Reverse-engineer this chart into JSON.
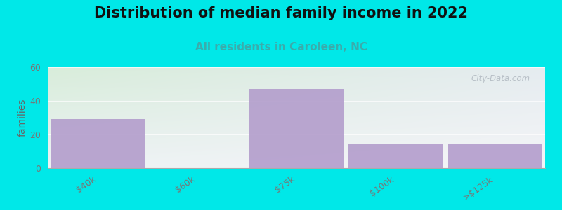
{
  "title": "Distribution of median family income in 2022",
  "subtitle": "All residents in Caroleen, NC",
  "categories": [
    "$40k",
    "$60k",
    "$75k",
    "$100k",
    ">$125k"
  ],
  "values": [
    29,
    0,
    47,
    14,
    14
  ],
  "bar_color": "#b39dcc",
  "background_outer": "#00e8e8",
  "background_grad_left": "#d8edda",
  "background_grad_right": "#dde8f0",
  "ylabel": "families",
  "ylim": [
    0,
    60
  ],
  "yticks": [
    0,
    20,
    40,
    60
  ],
  "watermark": "City-Data.com",
  "title_fontsize": 15,
  "subtitle_fontsize": 11,
  "subtitle_color": "#3aacac",
  "ylabel_fontsize": 10,
  "tick_label_color": "#777777",
  "ylabel_color": "#666666",
  "title_color": "#111111"
}
